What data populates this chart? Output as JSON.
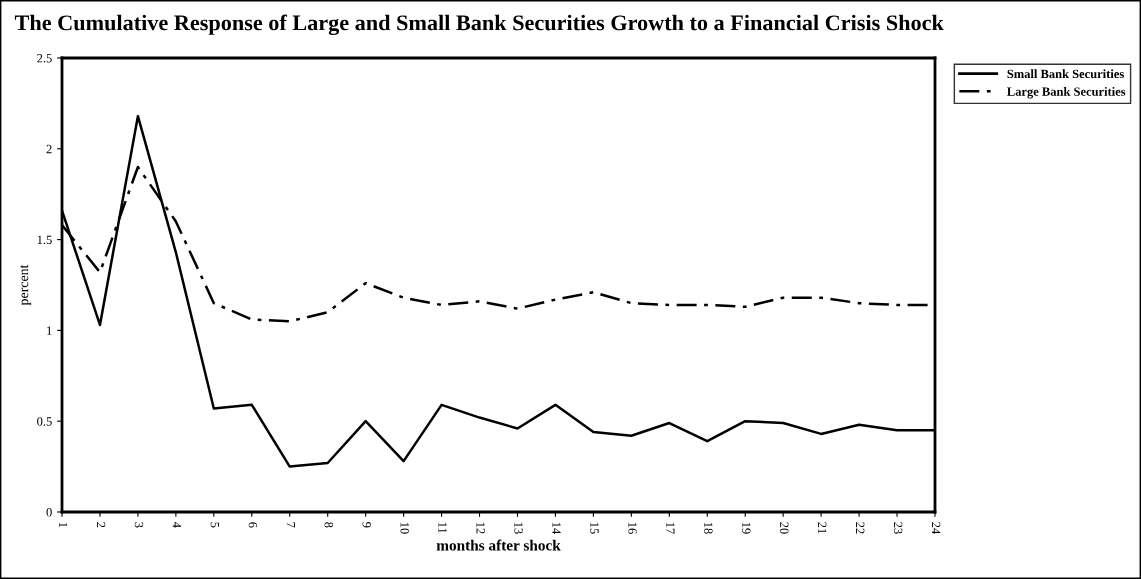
{
  "chart_data": {
    "type": "line",
    "title": "The Cumulative Response of Large and Small Bank Securities Growth to a Financial Crisis Shock",
    "xlabel": "months after shock",
    "ylabel": "percent",
    "categories": [
      "1",
      "2",
      "3",
      "4",
      "5",
      "6",
      "7",
      "8",
      "9",
      "10",
      "11",
      "12",
      "13",
      "14",
      "15",
      "16",
      "17",
      "18",
      "19",
      "20",
      "21",
      "22",
      "23",
      "24"
    ],
    "series": [
      {
        "name": "Small Bank Securities",
        "color": "#000000",
        "line_style": "solid",
        "values": [
          1.66,
          1.03,
          2.18,
          1.43,
          0.57,
          0.59,
          0.25,
          0.27,
          0.5,
          0.28,
          0.59,
          0.52,
          0.46,
          0.59,
          0.44,
          0.42,
          0.49,
          0.39,
          0.5,
          0.49,
          0.43,
          0.48,
          0.45,
          0.45
        ]
      },
      {
        "name": "Large Bank Securities",
        "color": "#000000",
        "line_style": "dashdot",
        "values": [
          1.58,
          1.32,
          1.9,
          1.6,
          1.15,
          1.06,
          1.05,
          1.1,
          1.26,
          1.18,
          1.14,
          1.16,
          1.12,
          1.17,
          1.21,
          1.15,
          1.14,
          1.14,
          1.13,
          1.18,
          1.18,
          1.15,
          1.14,
          1.14
        ]
      }
    ],
    "ylim": [
      0,
      2.5
    ],
    "yticks": [
      0,
      0.5,
      1,
      1.5,
      2,
      2.5
    ],
    "grid": false,
    "legend": "right",
    "marker": "none"
  }
}
